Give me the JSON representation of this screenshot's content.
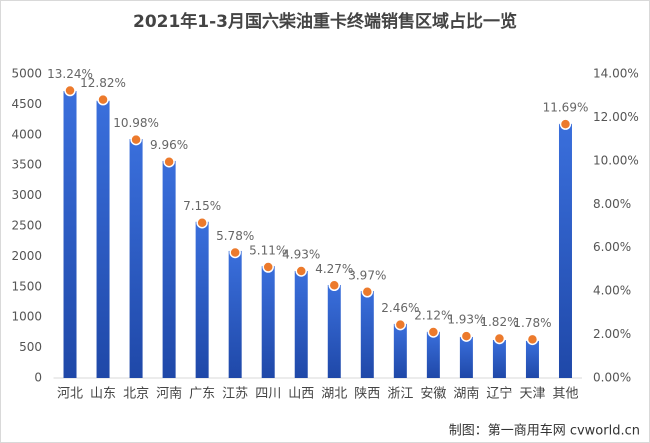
{
  "chart_data": {
    "type": "bar",
    "title": "2021年1-3月国六柴油重卡终端销售区域占比一览",
    "source": "制图：第一商用车网 cvworld.cn",
    "categories": [
      "河北",
      "山东",
      "北京",
      "河南",
      "广东",
      "江苏",
      "四川",
      "山西",
      "湖北",
      "陕西",
      "浙江",
      "安徽",
      "湖南",
      "辽宁",
      "天津",
      "其他"
    ],
    "series": [
      {
        "type": "bar",
        "color": "#2d5fc8",
        "axis": "y",
        "values": [
          4720,
          4560,
          3930,
          3570,
          2570,
          2090,
          1840,
          1760,
          1530,
          1430,
          890,
          760,
          675,
          625,
          610,
          4180
        ]
      },
      {
        "type": "scatter",
        "color": "#ec7a2c",
        "axis": "y2",
        "values": [
          13.24,
          12.82,
          10.98,
          9.96,
          7.15,
          5.78,
          5.11,
          4.93,
          4.27,
          3.97,
          2.46,
          2.12,
          1.93,
          1.82,
          1.78,
          11.69
        ],
        "value_labels": [
          "13.24%",
          "12.82%",
          "10.98%",
          "9.96%",
          "7.15%",
          "5.78%",
          "5.11%",
          "4.93%",
          "4.27%",
          "3.97%",
          "2.46%",
          "2.12%",
          "1.93%",
          "1.82%",
          "1.78%",
          "11.69%"
        ]
      }
    ],
    "ylim": [
      0,
      5000
    ],
    "yticks": [
      0,
      500,
      1000,
      1500,
      2000,
      2500,
      3000,
      3500,
      4000,
      4500,
      5000
    ],
    "y2lim": [
      0,
      14
    ],
    "y2ticks": [
      {
        "value": 0,
        "label": "0.00%"
      },
      {
        "value": 2,
        "label": "2.00%"
      },
      {
        "value": 4,
        "label": "4.00%"
      },
      {
        "value": 6,
        "label": "6.00%"
      },
      {
        "value": 8,
        "label": "8.00%"
      },
      {
        "value": 10,
        "label": "10.00%"
      },
      {
        "value": 12,
        "label": "12.00%"
      },
      {
        "value": 14,
        "label": "14.00%"
      }
    ],
    "grid": false
  }
}
